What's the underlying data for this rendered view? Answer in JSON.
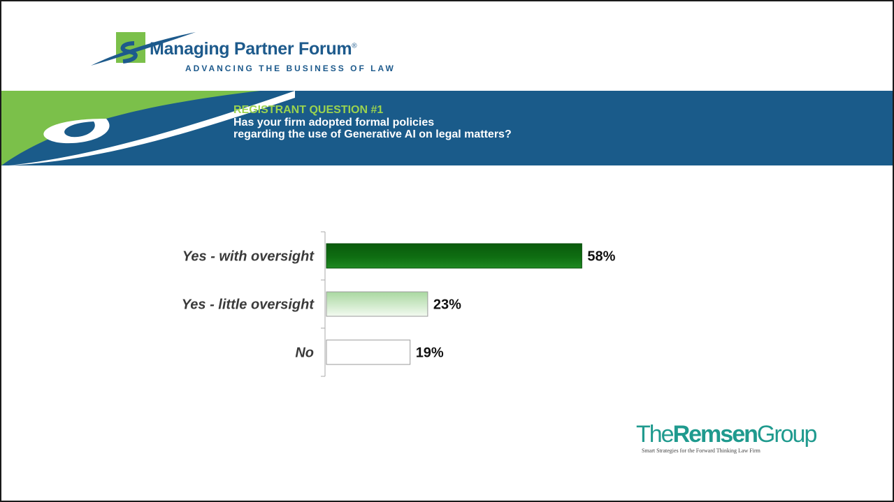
{
  "logo": {
    "name": "Managing Partner Forum",
    "registered_mark": "®",
    "tagline": "ADVANCING THE BUSINESS OF LAW",
    "colors": {
      "blue": "#1d5a8c",
      "green": "#7bc04a"
    }
  },
  "banner": {
    "question_number": "REGISTRANT QUESTION #1",
    "question_lines": [
      "Has your firm adopted formal policies",
      "regarding the use of Generative AI on legal matters?"
    ],
    "colors": {
      "background": "#1a5b8a",
      "accent": "#9bd34f"
    }
  },
  "chart_data": {
    "type": "bar",
    "orientation": "horizontal",
    "categories": [
      "Yes - with oversight",
      "Yes - little oversight",
      "No"
    ],
    "values": [
      58,
      23,
      19
    ],
    "value_labels": [
      "58%",
      "23%",
      "19%"
    ],
    "unit": "%",
    "xlim": [
      0,
      100
    ],
    "grid": false,
    "legend": "none",
    "bar_colors": [
      "#0f6e12",
      "#c8e6c2",
      "#ffffff"
    ]
  },
  "footer_logo": {
    "name_prefix": "The",
    "name_bold": "Remsen",
    "name_suffix": "Group",
    "tagline": "Smart Strategies for the Forward Thinking Law Firm",
    "color": "#1f9a8e"
  }
}
